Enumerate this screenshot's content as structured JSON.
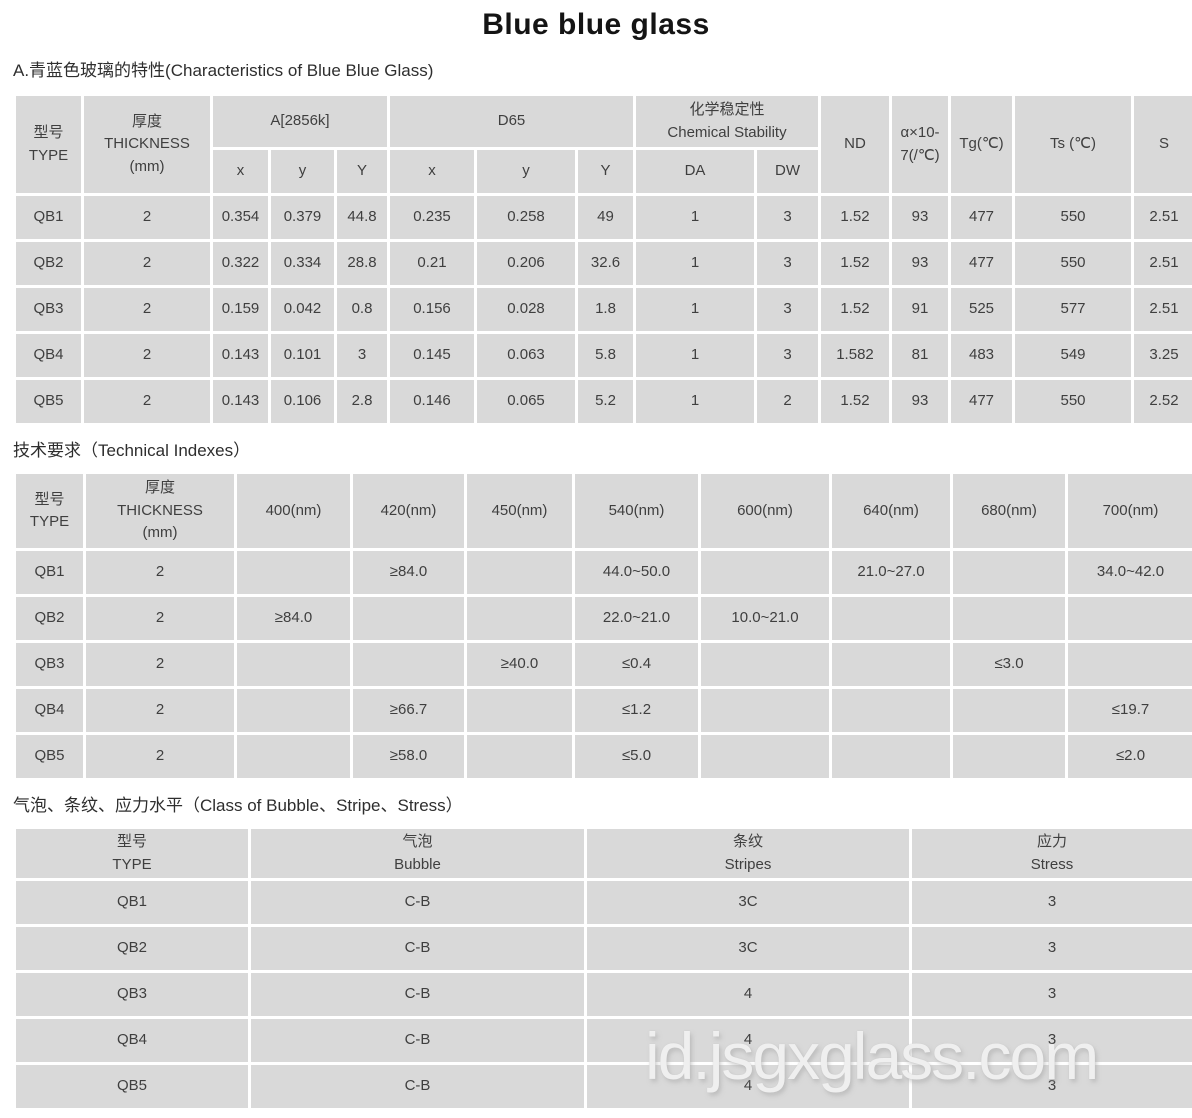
{
  "page": {
    "title": "Blue blue glass",
    "watermark": "id.jsgxglass.com"
  },
  "sections": {
    "characteristics_heading": "A.青蓝色玻璃的特性(Characteristics of Blue Blue Glass)",
    "technical_heading": "技术要求（Technical Indexes）",
    "bubble_heading": "气泡、条纹、应力水平（Class of Bubble、Stripe、Stress）"
  },
  "table1": {
    "header": {
      "type": "型号\nTYPE",
      "thickness": "厚度\nTHICKNESS\n(mm)",
      "a2856k": "A[2856k]",
      "d65": "D65",
      "chem_stability": "化学稳定性\nChemical Stability",
      "nd": "ND",
      "alpha": "α×10-\n7(/℃)",
      "tg": "Tg(℃)",
      "ts": "Ts (℃)",
      "s": "S",
      "x": "x",
      "y": "y",
      "Y": "Y",
      "da": "DA",
      "dw": "DW"
    },
    "rows": [
      [
        "QB1",
        "2",
        "0.354",
        "0.379",
        "44.8",
        "0.235",
        "0.258",
        "49",
        "1",
        "3",
        "1.52",
        "93",
        "477",
        "550",
        "2.51"
      ],
      [
        "QB2",
        "2",
        "0.322",
        "0.334",
        "28.8",
        "0.21",
        "0.206",
        "32.6",
        "1",
        "3",
        "1.52",
        "93",
        "477",
        "550",
        "2.51"
      ],
      [
        "QB3",
        "2",
        "0.159",
        "0.042",
        "0.8",
        "0.156",
        "0.028",
        "1.8",
        "1",
        "3",
        "1.52",
        "91",
        "525",
        "577",
        "2.51"
      ],
      [
        "QB4",
        "2",
        "0.143",
        "0.101",
        "3",
        "0.145",
        "0.063",
        "5.8",
        "1",
        "3",
        "1.582",
        "81",
        "483",
        "549",
        "3.25"
      ],
      [
        "QB5",
        "2",
        "0.143",
        "0.106",
        "2.8",
        "0.146",
        "0.065",
        "5.2",
        "1",
        "2",
        "1.52",
        "93",
        "477",
        "550",
        "2.52"
      ]
    ]
  },
  "table2": {
    "header": {
      "type": "型号\nTYPE",
      "thickness": "厚度\nTHICKNESS\n(mm)",
      "nm400": "400(nm)",
      "nm420": "420(nm)",
      "nm450": "450(nm)",
      "nm540": "540(nm)",
      "nm600": "600(nm)",
      "nm640": "640(nm)",
      "nm680": "680(nm)",
      "nm700": "700(nm)"
    },
    "rows": [
      [
        "QB1",
        "2",
        "",
        "≥84.0",
        "",
        "44.0~50.0",
        "",
        "21.0~27.0",
        "",
        "34.0~42.0"
      ],
      [
        "QB2",
        "2",
        "≥84.0",
        "",
        "",
        "22.0~21.0",
        "10.0~21.0",
        "",
        "",
        ""
      ],
      [
        "QB3",
        "2",
        "",
        "",
        "≥40.0",
        "≤0.4",
        "",
        "",
        "≤3.0",
        ""
      ],
      [
        "QB4",
        "2",
        "",
        "≥66.7",
        "",
        "≤1.2",
        "",
        "",
        "",
        "≤19.7"
      ],
      [
        "QB5",
        "2",
        "",
        "≥58.0",
        "",
        "≤5.0",
        "",
        "",
        "",
        "≤2.0"
      ]
    ]
  },
  "table3": {
    "header": {
      "type": "型号\nTYPE",
      "bubble": "气泡\nBubble",
      "stripes": "条纹\nStripes",
      "stress": "应力\nStress"
    },
    "rows": [
      [
        "QB1",
        "C-B",
        "3C",
        "3"
      ],
      [
        "QB2",
        "C-B",
        "3C",
        "3"
      ],
      [
        "QB3",
        "C-B",
        "4",
        "3"
      ],
      [
        "QB4",
        "C-B",
        "4",
        "3"
      ],
      [
        "QB5",
        "C-B",
        "4",
        "3"
      ]
    ]
  }
}
